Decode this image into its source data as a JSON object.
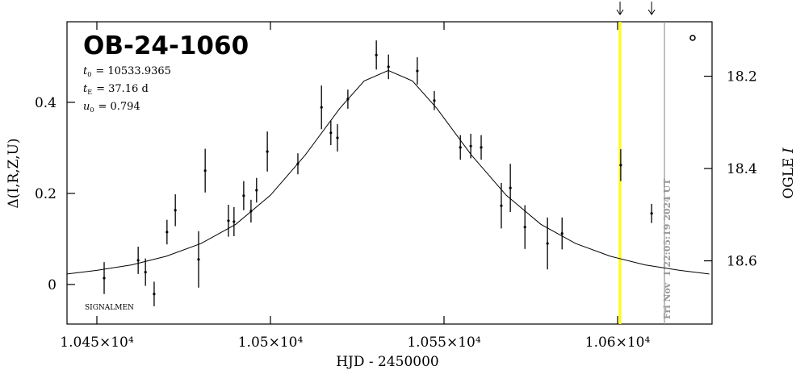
{
  "chart_data": {
    "type": "scatter",
    "title": "OB-24-1060",
    "params": [
      {
        "symbol": "t",
        "sub": "0",
        "text": "= 10533.9365"
      },
      {
        "symbol": "t",
        "sub": "E",
        "text": "= 37.16 d"
      },
      {
        "symbol": "u",
        "sub": "0",
        "text": "= 0.794"
      }
    ],
    "note": "SIGNALMEN",
    "timestamp": "Fri Nov  1 22:05:19 2024 UT",
    "x_label": "HJD - 2450000",
    "y_label": "Δ(I,R,Z,U)",
    "y2_label": {
      "text": "OGLE",
      "italic": "I"
    },
    "xlim": [
      10441.4,
      10627.2
    ],
    "xticks": [
      {
        "value": 10450,
        "label": "1.045×10⁴"
      },
      {
        "value": 10500,
        "label": "1.05×10⁴"
      },
      {
        "value": 10550,
        "label": "1.055×10⁴"
      },
      {
        "value": 10600,
        "label": "1.06×10⁴"
      }
    ],
    "ylim": [
      -0.087,
      0.577
    ],
    "yticks": [
      0,
      0.2,
      0.4
    ],
    "y2lim": [
      18.737,
      18.082
    ],
    "y2ticks": [
      18.2,
      18.4,
      18.6
    ],
    "vlines": [
      {
        "x": 10600.7,
        "color": "#ffff00"
      },
      {
        "x": 10613.5,
        "color": "#999999"
      }
    ],
    "arrows_x": [
      10600.7,
      10609.8
    ],
    "series": [
      {
        "color": "#000000",
        "x": [
          10452.1,
          10461.9,
          10464.0,
          10466.5,
          10470.2,
          10472.6,
          10479.3,
          10481.2,
          10487.9,
          10489.5,
          10492.3,
          10494.4,
          10496.0,
          10499.1,
          10507.9,
          10514.7,
          10517.4,
          10519.3,
          10522.3,
          10530.5,
          10534.0,
          10542.3,
          10547.2,
          10554.7,
          10557.7,
          10560.7,
          10566.5,
          10569.1,
          10573.3,
          10579.8,
          10584.0,
          10600.9,
          10609.8
        ],
        "values": [
          0.014,
          0.053,
          0.027,
          -0.021,
          0.115,
          0.163,
          0.055,
          0.25,
          0.14,
          0.138,
          0.195,
          0.161,
          0.207,
          0.292,
          0.265,
          0.389,
          0.333,
          0.322,
          0.407,
          0.504,
          0.478,
          0.469,
          0.404,
          0.301,
          0.304,
          0.301,
          0.173,
          0.212,
          0.126,
          0.09,
          0.112,
          0.262,
          0.156
        ],
        "errors": [
          0.035,
          0.03,
          0.03,
          0.027,
          0.027,
          0.035,
          0.062,
          0.048,
          0.035,
          0.032,
          0.032,
          0.025,
          0.027,
          0.044,
          0.023,
          0.048,
          0.027,
          0.03,
          0.021,
          0.032,
          0.027,
          0.03,
          0.021,
          0.027,
          0.027,
          0.027,
          0.05,
          0.053,
          0.048,
          0.057,
          0.035,
          0.035,
          0.021
        ]
      },
      {
        "type": "line",
        "color": "#000000",
        "x": [
          10441.4,
          10450,
          10460,
          10470,
          10480,
          10490,
          10500,
          10510,
          10520,
          10527,
          10533.94,
          10540.9,
          10547.9,
          10557.9,
          10567.9,
          10577.9,
          10587.9,
          10597.9,
          10607.9,
          10617.9,
          10626.4
        ],
        "values": [
          0.023,
          0.031,
          0.043,
          0.062,
          0.09,
          0.132,
          0.196,
          0.284,
          0.387,
          0.447,
          0.47,
          0.447,
          0.387,
          0.284,
          0.196,
          0.132,
          0.09,
          0.062,
          0.043,
          0.031,
          0.023
        ]
      }
    ]
  }
}
